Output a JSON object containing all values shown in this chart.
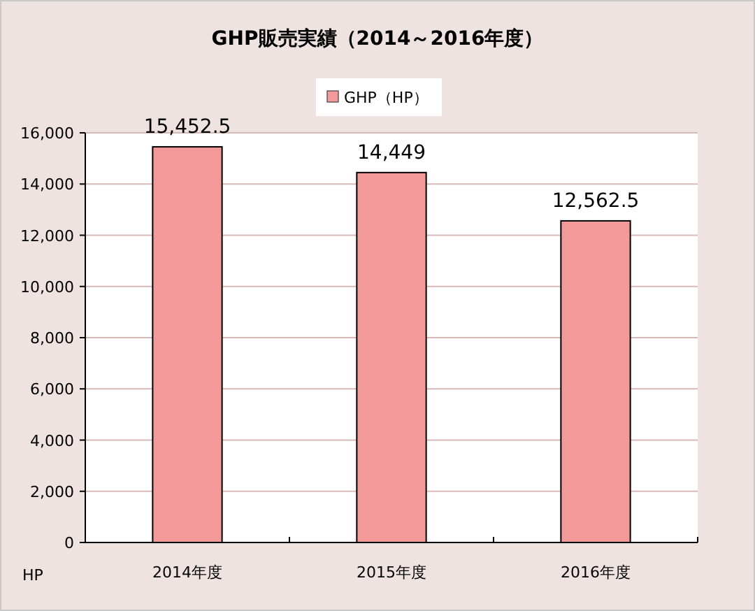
{
  "chart_data": {
    "type": "bar",
    "title": "GHP販売実績（2014～2016年度）",
    "ylabel": "HP",
    "categories": [
      "2014年度",
      "2015年度",
      "2016年度"
    ],
    "series": [
      {
        "name": "GHP（HP）",
        "color": "#f4999a",
        "values": [
          15452.5,
          14449,
          12562.5
        ]
      }
    ],
    "value_labels": [
      "15,452.5",
      "14,449",
      "12,562.5"
    ],
    "ylim": [
      0,
      16000
    ],
    "yticks": [
      {
        "value": 0,
        "label": "0"
      },
      {
        "value": 2000,
        "label": "2,000"
      },
      {
        "value": 4000,
        "label": "4,000"
      },
      {
        "value": 6000,
        "label": "6,000"
      },
      {
        "value": 8000,
        "label": "8,000"
      },
      {
        "value": 10000,
        "label": "10,000"
      },
      {
        "value": 12000,
        "label": "12,000"
      },
      {
        "value": 14000,
        "label": "14,000"
      },
      {
        "value": 16000,
        "label": "16,000"
      }
    ],
    "grid": "y",
    "legend": "top"
  }
}
